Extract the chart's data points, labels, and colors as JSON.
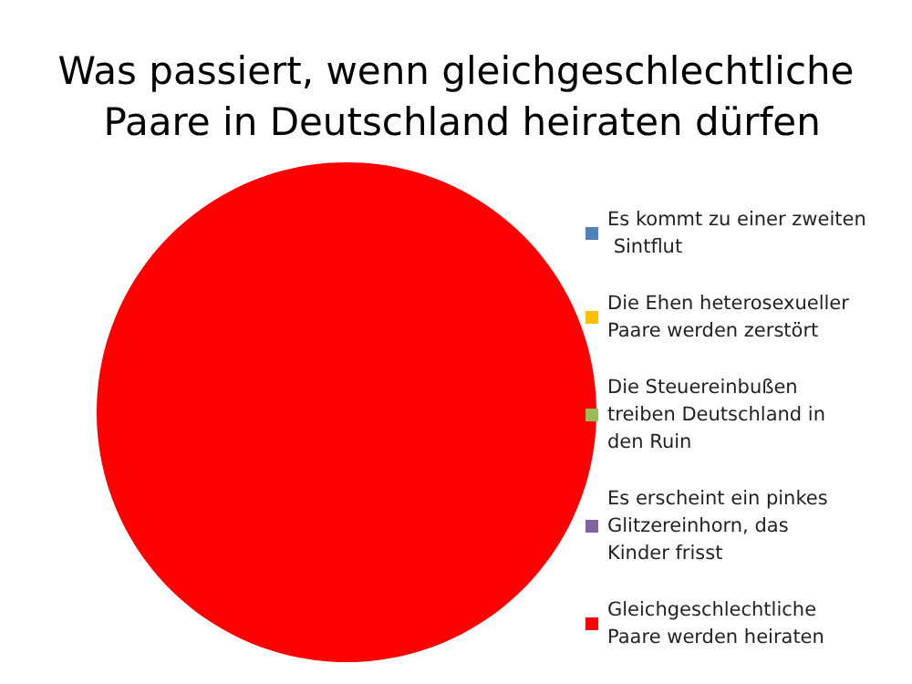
{
  "chart_data": {
    "type": "pie",
    "title": "Was passiert, wenn gleichgeschlechtliche Paare in Deutschland heiraten dürfen",
    "categories": [
      "Es kommt zu einer zweiten Sintflut",
      "Die Ehen heterosexueller Paare werden zerstört",
      "Die Steuereinbußen treiben Deutschland in den Ruin",
      "Es erscheint ein pinkes Glitzereinhorn, das Kinder frisst",
      "Gleichgeschlechtliche Paare werden heiraten"
    ],
    "values": [
      0,
      0,
      0,
      0,
      100
    ],
    "colors": [
      "#4f81bd",
      "#ffc000",
      "#9bbb59",
      "#8064a2",
      "#ff0000"
    ],
    "legend": "right"
  }
}
